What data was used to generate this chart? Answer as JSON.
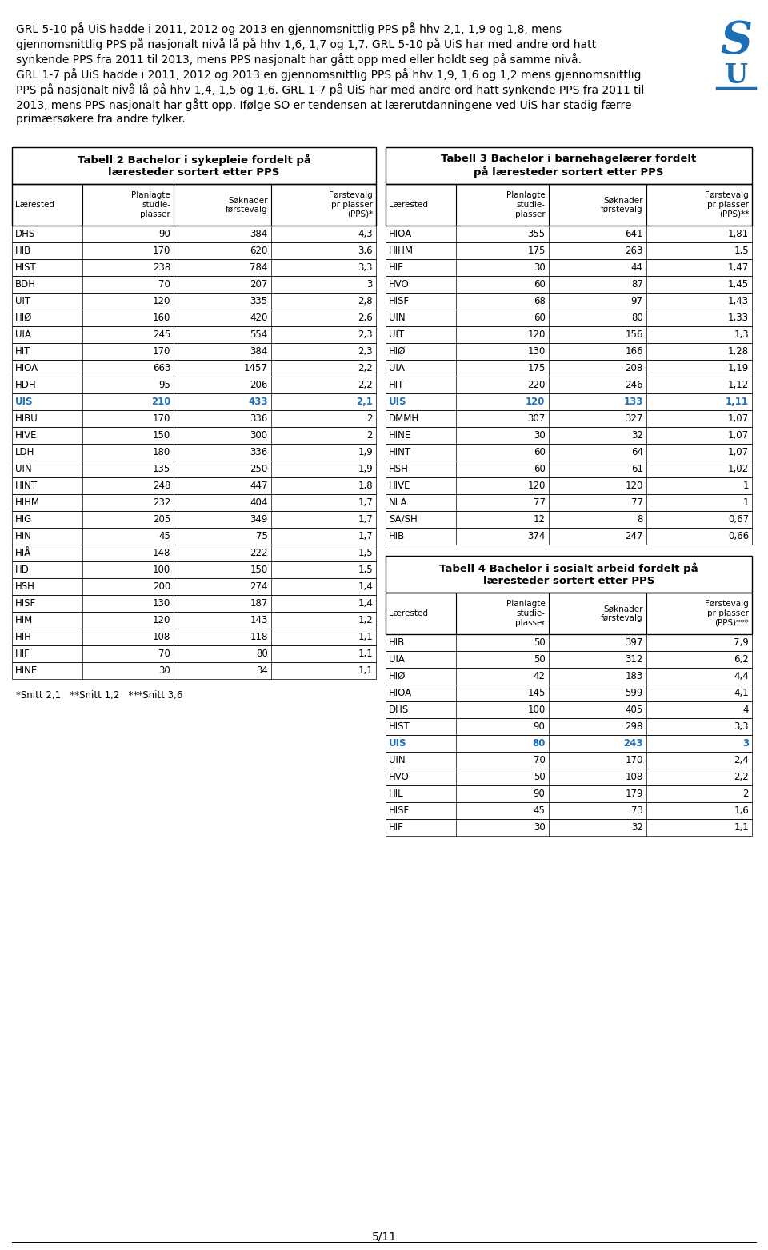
{
  "intro_lines": [
    "GRL 5-10 på UiS hadde i 2011, 2012 og 2013 en gjennomsnittlig PPS på hhv 2,1, 1,9 og 1,8, mens",
    "gjennomsnittlig PPS på nasjonalt nivå lå på hhv 1,6, 1,7 og 1,7. GRL 5-10 på UiS har med andre ord hatt",
    "synkende PPS fra 2011 til 2013, mens PPS nasjonalt har gått opp med eller holdt seg på samme nivå.",
    "GRL 1-7 på UiS hadde i 2011, 2012 og 2013 en gjennomsnittlig PPS på hhv 1,9, 1,6 og 1,2 mens gjennomsnittlig",
    "PPS på nasjonalt nivå lå på hhv 1,4, 1,5 og 1,6. GRL 1-7 på UiS har med andre ord hatt synkende PPS fra 2011 til",
    "2013, mens PPS nasjonalt har gått opp. Ifølge SO er tendensen at lærerutdanningene ved UiS har stadig færre",
    "primærsøkere fra andre fylker."
  ],
  "table2_title": "Tabell 2 Bachelor i sykepleie fordelt på\nlæresteder sortert etter PPS",
  "table2_headers": [
    "Lærested",
    "Planlagte\nstudie-\nplasser",
    "Søknader\nførstevalg",
    "Førstevalg\npr plasser\n(PPS)*"
  ],
  "table2_data": [
    [
      "DHS",
      "90",
      "384",
      "4,3"
    ],
    [
      "HIB",
      "170",
      "620",
      "3,6"
    ],
    [
      "HIST",
      "238",
      "784",
      "3,3"
    ],
    [
      "BDH",
      "70",
      "207",
      "3"
    ],
    [
      "UIT",
      "120",
      "335",
      "2,8"
    ],
    [
      "HIØ",
      "160",
      "420",
      "2,6"
    ],
    [
      "UIA",
      "245",
      "554",
      "2,3"
    ],
    [
      "HIT",
      "170",
      "384",
      "2,3"
    ],
    [
      "HIOA",
      "663",
      "1457",
      "2,2"
    ],
    [
      "HDH",
      "95",
      "206",
      "2,2"
    ],
    [
      "UIS",
      "210",
      "433",
      "2,1"
    ],
    [
      "HIBU",
      "170",
      "336",
      "2"
    ],
    [
      "HIVE",
      "150",
      "300",
      "2"
    ],
    [
      "LDH",
      "180",
      "336",
      "1,9"
    ],
    [
      "UIN",
      "135",
      "250",
      "1,9"
    ],
    [
      "HINT",
      "248",
      "447",
      "1,8"
    ],
    [
      "HIHM",
      "232",
      "404",
      "1,7"
    ],
    [
      "HIG",
      "205",
      "349",
      "1,7"
    ],
    [
      "HIN",
      "45",
      "75",
      "1,7"
    ],
    [
      "HIÅ",
      "148",
      "222",
      "1,5"
    ],
    [
      "HD",
      "100",
      "150",
      "1,5"
    ],
    [
      "HSH",
      "200",
      "274",
      "1,4"
    ],
    [
      "HISF",
      "130",
      "187",
      "1,4"
    ],
    [
      "HIM",
      "120",
      "143",
      "1,2"
    ],
    [
      "HIH",
      "108",
      "118",
      "1,1"
    ],
    [
      "HIF",
      "70",
      "80",
      "1,1"
    ],
    [
      "HINE",
      "30",
      "34",
      "1,1"
    ]
  ],
  "table2_uis_row": 10,
  "table3_title": "Tabell 3 Bachelor i barnehagelærer fordelt\npå læresteder sortert etter PPS",
  "table3_headers": [
    "Lærested",
    "Planlagte\nstudie-\nplasser",
    "Søknader\nførstevalg",
    "Førstevalg\npr plasser\n(PPS)**"
  ],
  "table3_data": [
    [
      "HIOA",
      "355",
      "641",
      "1,81"
    ],
    [
      "HIHM",
      "175",
      "263",
      "1,5"
    ],
    [
      "HIF",
      "30",
      "44",
      "1,47"
    ],
    [
      "HVO",
      "60",
      "87",
      "1,45"
    ],
    [
      "HISF",
      "68",
      "97",
      "1,43"
    ],
    [
      "UIN",
      "60",
      "80",
      "1,33"
    ],
    [
      "UIT",
      "120",
      "156",
      "1,3"
    ],
    [
      "HIØ",
      "130",
      "166",
      "1,28"
    ],
    [
      "UIA",
      "175",
      "208",
      "1,19"
    ],
    [
      "HIT",
      "220",
      "246",
      "1,12"
    ],
    [
      "UIS",
      "120",
      "133",
      "1,11"
    ],
    [
      "DMMH",
      "307",
      "327",
      "1,07"
    ],
    [
      "HINE",
      "30",
      "32",
      "1,07"
    ],
    [
      "HINT",
      "60",
      "64",
      "1,07"
    ],
    [
      "HSH",
      "60",
      "61",
      "1,02"
    ],
    [
      "HIVE",
      "120",
      "120",
      "1"
    ],
    [
      "NLA",
      "77",
      "77",
      "1"
    ],
    [
      "SA/SH",
      "12",
      "8",
      "0,67"
    ],
    [
      "HIB",
      "374",
      "247",
      "0,66"
    ]
  ],
  "table3_uis_row": 10,
  "table4_title": "Tabell 4 Bachelor i sosialt arbeid fordelt på\nlæresteder sortert etter PPS",
  "table4_headers": [
    "Lærested",
    "Planlagte\nstudie-\nplasser",
    "Søknader\nførstevalg",
    "Førstevalg\npr plasser\n(PPS)***"
  ],
  "table4_data": [
    [
      "HIB",
      "50",
      "397",
      "7,9"
    ],
    [
      "UIA",
      "50",
      "312",
      "6,2"
    ],
    [
      "HIØ",
      "42",
      "183",
      "4,4"
    ],
    [
      "HIOA",
      "145",
      "599",
      "4,1"
    ],
    [
      "DHS",
      "100",
      "405",
      "4"
    ],
    [
      "HIST",
      "90",
      "298",
      "3,3"
    ],
    [
      "UIS",
      "80",
      "243",
      "3"
    ],
    [
      "UIN",
      "70",
      "170",
      "2,4"
    ],
    [
      "HVO",
      "50",
      "108",
      "2,2"
    ],
    [
      "HIL",
      "90",
      "179",
      "2"
    ],
    [
      "HISF",
      "45",
      "73",
      "1,6"
    ],
    [
      "HIF",
      "30",
      "32",
      "1,1"
    ]
  ],
  "table4_uis_row": 6,
  "footnote": "*Snitt 2,1   **Snitt 1,2   ***Snitt 3,6",
  "page_number": "5/11",
  "uis_color": "#1e6eb4",
  "text_color": "#000000",
  "bg_color": "#ffffff",
  "line_color": "#000000",
  "logo_color": "#1e6eb4"
}
